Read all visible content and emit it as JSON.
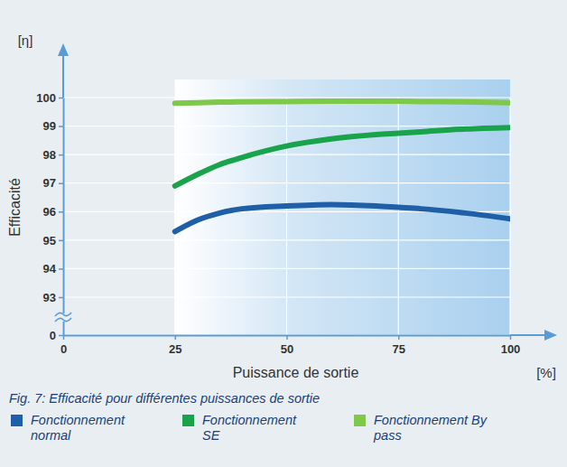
{
  "chart_data": {
    "type": "line",
    "title": "Fig. 7: Efficacité pour différentes puissances de sortie",
    "x_label": "Puissance de sortie",
    "x_unit": "[%]",
    "y_label": "Efficacité",
    "y_unit": "[η]",
    "x": [
      25,
      30,
      35,
      40,
      50,
      60,
      70,
      75,
      80,
      90,
      100
    ],
    "series": [
      {
        "name": "Fonctionnement normal",
        "color": "#1f5fa8",
        "values": [
          95.3,
          95.7,
          95.95,
          96.1,
          96.2,
          96.25,
          96.2,
          96.15,
          96.1,
          95.95,
          95.75
        ]
      },
      {
        "name": "Fonctionnement SE",
        "color": "#19a34a",
        "values": [
          96.9,
          97.3,
          97.65,
          97.9,
          98.3,
          98.55,
          98.7,
          98.75,
          98.8,
          98.9,
          98.95
        ]
      },
      {
        "name": "Fonctionnement By pass",
        "color": "#7ec84a",
        "values": [
          99.8,
          99.82,
          99.84,
          99.85,
          99.86,
          99.87,
          99.87,
          99.87,
          99.86,
          99.85,
          99.82
        ]
      }
    ],
    "xlim": [
      0,
      100
    ],
    "xticks": [
      0,
      25,
      50,
      75,
      100
    ],
    "ylim": [
      0,
      100
    ],
    "yticks": [
      0,
      93,
      94,
      95,
      96,
      97,
      98,
      99,
      100
    ],
    "grid": true,
    "legend": "bottom"
  }
}
